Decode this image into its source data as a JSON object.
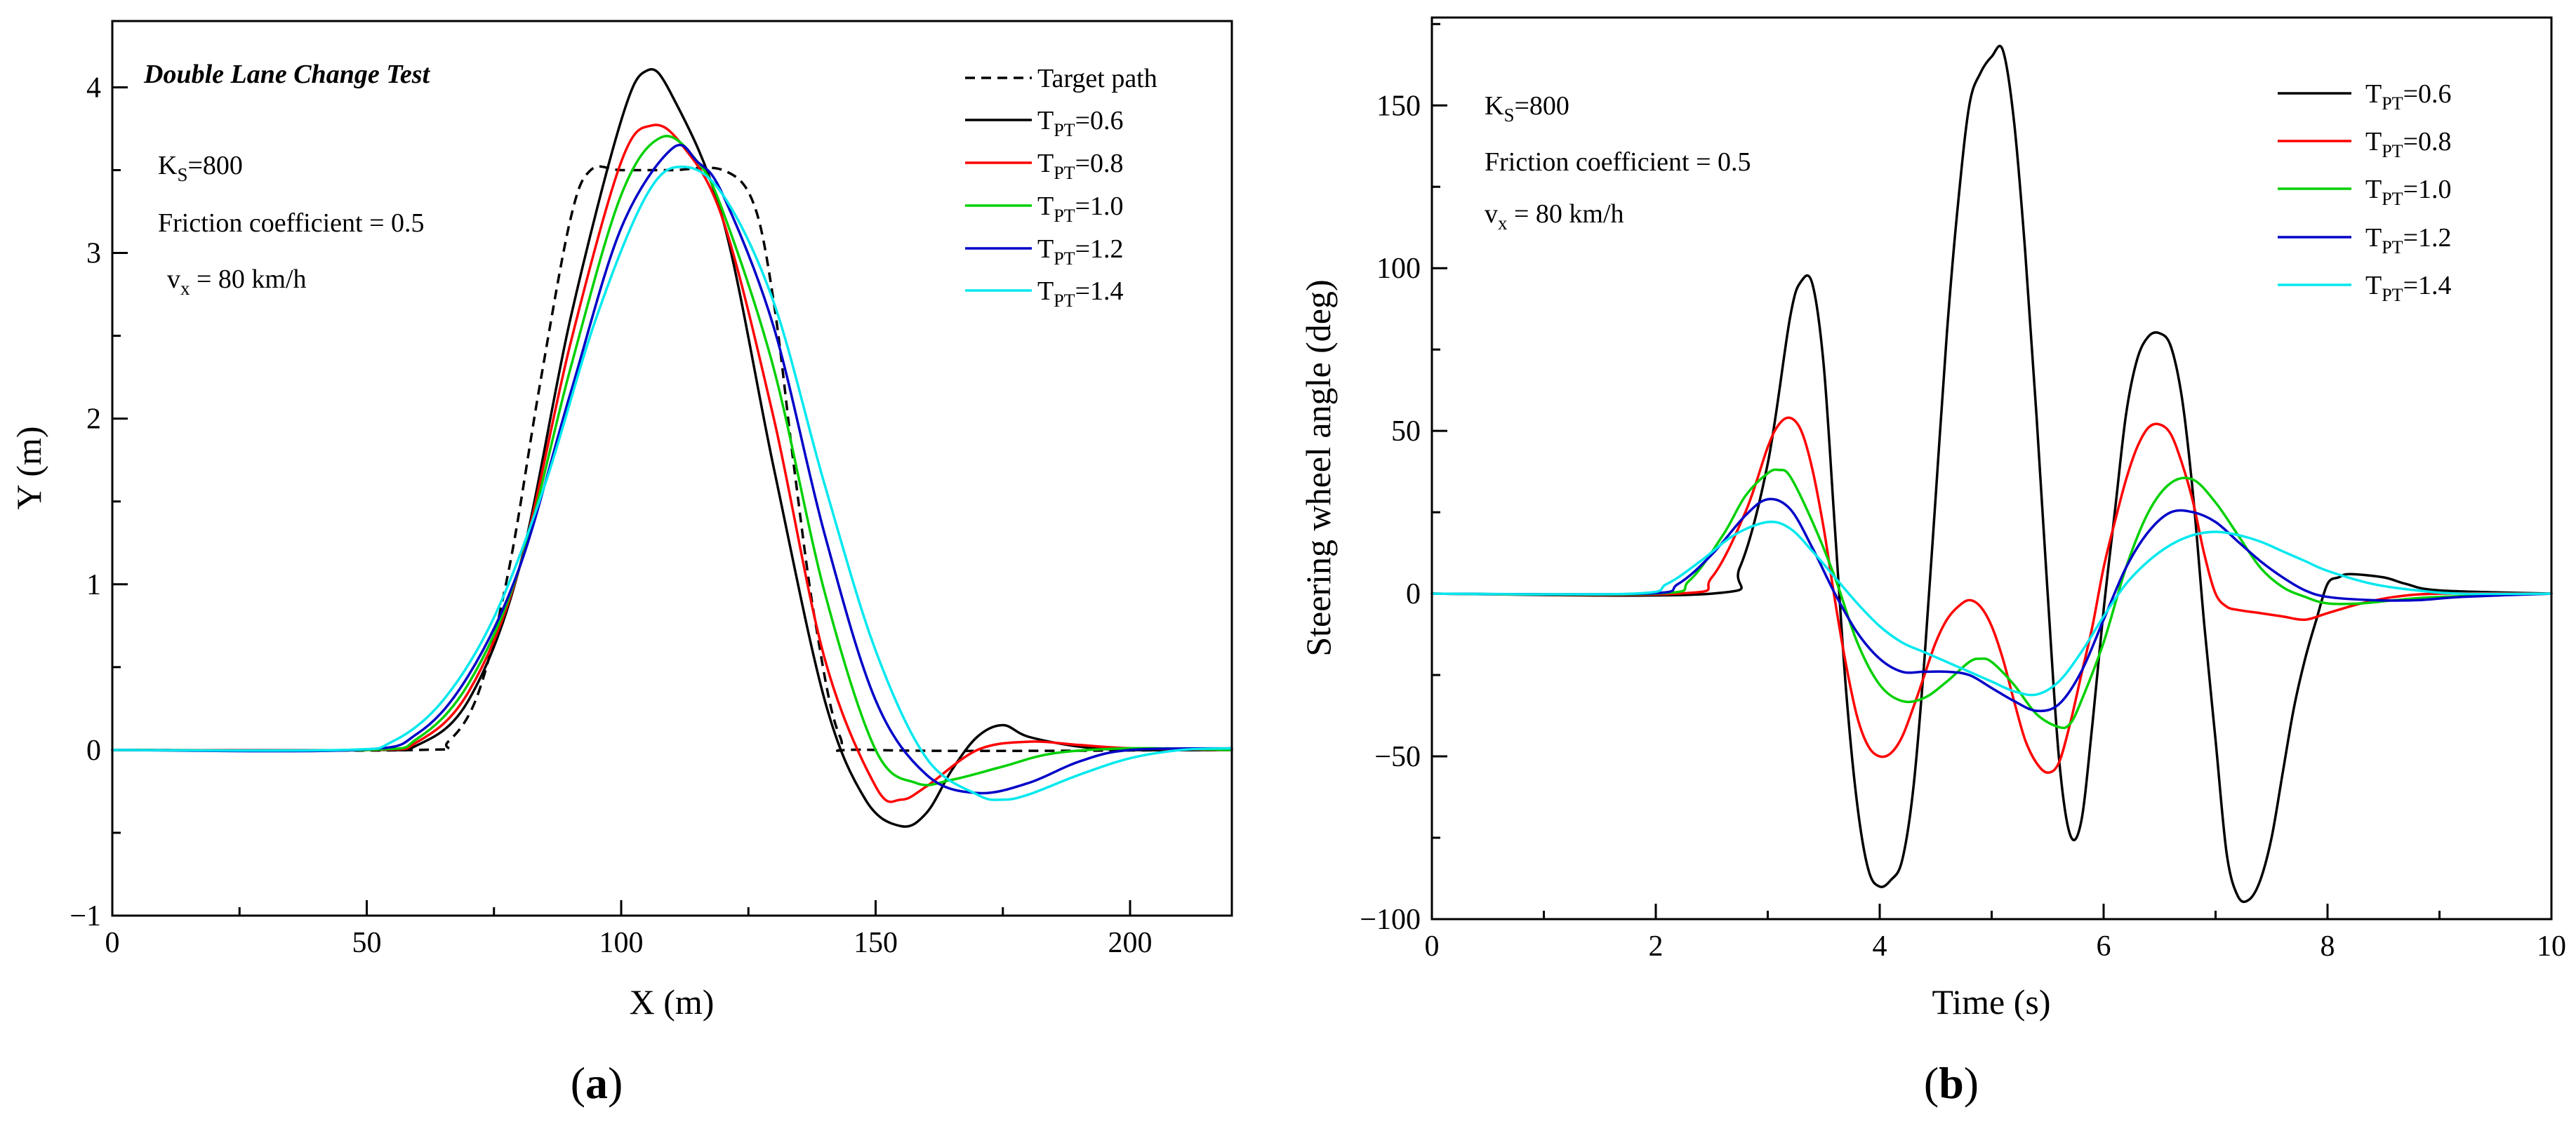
{
  "colors": {
    "target": "#000000",
    "t06": "#000000",
    "t08": "#ff0000",
    "t10": "#00d000",
    "t12": "#0000c8",
    "t14": "#00e8ee"
  },
  "panels": {
    "a": {
      "label_open": "(",
      "label_letter": "a",
      "label_close": ")"
    },
    "b": {
      "label_open": "(",
      "label_letter": "b",
      "label_close": ")"
    }
  },
  "chart_data": [
    {
      "type": "line",
      "title": "Double Lane Change Test",
      "xlabel": "X (m)",
      "ylabel": "Y (m)",
      "xlim": [
        0,
        220
      ],
      "ylim": [
        -1,
        4.4
      ],
      "xticks": [
        0,
        50,
        100,
        150,
        200
      ],
      "yticks": [
        -1,
        0,
        1,
        2,
        3,
        4
      ],
      "xtick_labels": [
        "0",
        "50",
        "100",
        "150",
        "200"
      ],
      "ytick_labels": [
        "−1",
        "0",
        "1",
        "2",
        "3",
        "4"
      ],
      "annotations": {
        "ks_main": "K",
        "ks_sub": "S",
        "ks_val": "=800",
        "friction": "Friction coefficient = 0.5",
        "vx_main": "v",
        "vx_sub": "x",
        "vx_val": " = 80 km/h"
      },
      "legend_position": "top-right",
      "series": [
        {
          "name": "Target path",
          "color_key": "target",
          "dashed": true,
          "x": [
            0,
            60,
            66,
            72,
            78,
            84,
            90,
            94,
            100,
            110,
            120,
            126,
            130,
            134,
            138,
            143,
            150,
            220
          ],
          "y": [
            0,
            0,
            0.05,
            0.35,
            1.1,
            2.2,
            3.2,
            3.5,
            3.5,
            3.5,
            3.5,
            3.3,
            2.7,
            1.7,
            0.8,
            0.08,
            0,
            0
          ]
        },
        {
          "name_main": "T",
          "name_sub": "PT",
          "name_val": "=0.6",
          "color_key": "t06",
          "dashed": false,
          "x": [
            0,
            50,
            60,
            70,
            80,
            90,
            100,
            105,
            110,
            120,
            130,
            140,
            148,
            155,
            160,
            165,
            170,
            175,
            180,
            190,
            200,
            220
          ],
          "y": [
            0,
            0,
            0.03,
            0.3,
            1.1,
            2.6,
            3.8,
            4.1,
            3.95,
            3.2,
            1.7,
            0.3,
            -0.3,
            -0.46,
            -0.38,
            -0.12,
            0.08,
            0.15,
            0.08,
            0.02,
            0,
            0
          ]
        },
        {
          "name_main": "T",
          "name_sub": "PT",
          "name_val": "=0.8",
          "color_key": "t08",
          "dashed": false,
          "x": [
            0,
            50,
            60,
            70,
            80,
            90,
            100,
            106,
            112,
            120,
            130,
            140,
            150,
            155,
            160,
            170,
            180,
            190,
            200,
            220
          ],
          "y": [
            0,
            0,
            0.05,
            0.35,
            1.1,
            2.45,
            3.55,
            3.77,
            3.65,
            3.2,
            2.0,
            0.55,
            -0.22,
            -0.3,
            -0.22,
            0.0,
            0.05,
            0.03,
            0.01,
            0
          ]
        },
        {
          "name_main": "T",
          "name_sub": "PT",
          "name_val": "=1.0",
          "color_key": "t10",
          "dashed": false,
          "x": [
            0,
            50,
            60,
            70,
            80,
            90,
            100,
            108,
            115,
            120,
            130,
            140,
            150,
            158,
            165,
            175,
            185,
            200,
            220
          ],
          "y": [
            0,
            0,
            0.07,
            0.4,
            1.1,
            2.3,
            3.35,
            3.7,
            3.55,
            3.25,
            2.3,
            0.95,
            0.0,
            -0.2,
            -0.18,
            -0.1,
            -0.02,
            0.01,
            0
          ]
        },
        {
          "name_main": "T",
          "name_sub": "PT",
          "name_val": "=1.2",
          "color_key": "t12",
          "dashed": false,
          "x": [
            0,
            48,
            60,
            70,
            80,
            90,
            100,
            110,
            115,
            120,
            130,
            140,
            150,
            160,
            170,
            180,
            190,
            200,
            220
          ],
          "y": [
            0,
            0,
            0.1,
            0.45,
            1.1,
            2.15,
            3.15,
            3.63,
            3.55,
            3.35,
            2.55,
            1.3,
            0.3,
            -0.15,
            -0.26,
            -0.2,
            -0.07,
            0.0,
            0.01
          ]
        },
        {
          "name_main": "T",
          "name_sub": "PT",
          "name_val": "=1.4",
          "color_key": "t14",
          "dashed": false,
          "x": [
            0,
            45,
            55,
            65,
            75,
            85,
            95,
            105,
            112,
            120,
            130,
            140,
            150,
            160,
            170,
            175,
            180,
            190,
            200,
            210,
            220
          ],
          "y": [
            0,
            0,
            0.05,
            0.3,
            0.8,
            1.6,
            2.6,
            3.35,
            3.52,
            3.35,
            2.7,
            1.6,
            0.6,
            -0.05,
            -0.27,
            -0.3,
            -0.27,
            -0.15,
            -0.05,
            0.0,
            0.01
          ]
        }
      ]
    },
    {
      "type": "line",
      "xlabel": "Time (s)",
      "ylabel": "Steering wheel angle (deg)",
      "xlim": [
        0,
        10
      ],
      "ylim": [
        -100,
        177
      ],
      "xticks": [
        0,
        2,
        4,
        6,
        8,
        10
      ],
      "yticks": [
        -100,
        -50,
        0,
        50,
        100,
        150
      ],
      "xtick_labels": [
        "0",
        "2",
        "4",
        "6",
        "8",
        "10"
      ],
      "ytick_labels": [
        "−100",
        "−50",
        "0",
        "50",
        "100",
        "150"
      ],
      "annotations": {
        "ks_main": "K",
        "ks_sub": "S",
        "ks_val": "=800",
        "friction": "Friction coefficient = 0.5",
        "vx_main": "v",
        "vx_sub": "x",
        "vx_val": " = 80 km/h"
      },
      "legend_position": "top-right",
      "series": [
        {
          "name_main": "T",
          "name_sub": "PT",
          "name_val": "=0.6",
          "color_key": "t06",
          "x": [
            0,
            2.5,
            2.75,
            3.0,
            3.2,
            3.3,
            3.4,
            3.5,
            3.6,
            3.7,
            3.8,
            3.9,
            4.0,
            4.1,
            4.2,
            4.3,
            4.4,
            4.5,
            4.6,
            4.7,
            4.8,
            4.9,
            5.0,
            5.1,
            5.2,
            5.3,
            5.4,
            5.5,
            5.6,
            5.7,
            5.8,
            5.9,
            6.0,
            6.1,
            6.2,
            6.3,
            6.4,
            6.5,
            6.6,
            6.7,
            6.8,
            6.9,
            7.0,
            7.1,
            7.2,
            7.3,
            7.4,
            7.5,
            7.6,
            7.7,
            7.8,
            7.9,
            8.0,
            8.1,
            8.2,
            8.5,
            8.7,
            9.0,
            10.0
          ],
          "y": [
            0,
            0,
            8,
            40,
            85,
            96,
            95,
            70,
            20,
            -30,
            -65,
            -85,
            -90,
            -88,
            -82,
            -60,
            -20,
            30,
            80,
            120,
            150,
            160,
            165,
            167,
            145,
            105,
            55,
            0,
            -50,
            -74,
            -70,
            -40,
            -5,
            25,
            55,
            72,
            79,
            80,
            76,
            60,
            30,
            -10,
            -45,
            -80,
            -93,
            -94,
            -88,
            -75,
            -55,
            -35,
            -20,
            -8,
            3,
            5,
            6,
            5,
            3,
            1,
            0
          ]
        },
        {
          "name_main": "T",
          "name_sub": "PT",
          "name_val": "=0.8",
          "color_key": "t08",
          "x": [
            0,
            2.2,
            2.5,
            2.8,
            3.0,
            3.1,
            3.2,
            3.3,
            3.4,
            3.5,
            3.6,
            3.7,
            3.8,
            3.9,
            4.0,
            4.1,
            4.2,
            4.3,
            4.4,
            4.5,
            4.6,
            4.7,
            4.8,
            4.9,
            5.0,
            5.1,
            5.2,
            5.3,
            5.4,
            5.5,
            5.6,
            5.7,
            5.8,
            5.9,
            6.0,
            6.1,
            6.2,
            6.3,
            6.4,
            6.5,
            6.6,
            6.7,
            6.8,
            6.9,
            7.0,
            7.1,
            7.2,
            7.4,
            7.6,
            7.8,
            8.0,
            8.3,
            8.6,
            9.0,
            10.0
          ],
          "y": [
            0,
            0,
            5,
            25,
            45,
            52,
            54,
            50,
            38,
            20,
            -2,
            -22,
            -38,
            -47,
            -50,
            -49,
            -44,
            -35,
            -25,
            -15,
            -8,
            -4,
            -2,
            -4,
            -10,
            -20,
            -33,
            -45,
            -52,
            -55,
            -52,
            -40,
            -25,
            -10,
            8,
            22,
            35,
            45,
            51,
            52,
            49,
            40,
            28,
            12,
            0,
            -4,
            -5,
            -6,
            -7,
            -8,
            -6,
            -3,
            -1,
            0,
            0
          ]
        },
        {
          "name_main": "T",
          "name_sub": "PT",
          "name_val": "=1.0",
          "color_key": "t10",
          "x": [
            0,
            2.0,
            2.3,
            2.6,
            2.8,
            3.0,
            3.1,
            3.2,
            3.4,
            3.6,
            3.8,
            4.0,
            4.2,
            4.4,
            4.6,
            4.8,
            4.9,
            5.0,
            5.2,
            5.4,
            5.6,
            5.7,
            5.8,
            6.0,
            6.2,
            6.4,
            6.6,
            6.8,
            7.0,
            7.2,
            7.4,
            7.6,
            7.8,
            8.0,
            8.3,
            8.6,
            9.0,
            10.0
          ],
          "y": [
            0,
            0,
            4,
            18,
            30,
            37,
            38,
            36,
            22,
            5,
            -15,
            -28,
            -33,
            -32,
            -27,
            -21,
            -20,
            -21,
            -28,
            -37,
            -41,
            -40,
            -33,
            -15,
            8,
            25,
            34,
            35,
            28,
            18,
            8,
            2,
            -1,
            -3,
            -3,
            -2,
            -1,
            0
          ]
        },
        {
          "name_main": "T",
          "name_sub": "PT",
          "name_val": "=1.2",
          "color_key": "t12",
          "x": [
            0,
            1.9,
            2.2,
            2.5,
            2.8,
            3.0,
            3.2,
            3.4,
            3.6,
            3.8,
            4.0,
            4.2,
            4.4,
            4.6,
            4.8,
            5.0,
            5.2,
            5.4,
            5.6,
            5.8,
            6.0,
            6.2,
            6.4,
            6.6,
            6.8,
            7.0,
            7.2,
            7.4,
            7.6,
            7.8,
            8.0,
            8.4,
            8.8,
            9.2,
            10.0
          ],
          "y": [
            0,
            0,
            3,
            12,
            24,
            29,
            26,
            14,
            0,
            -12,
            -20,
            -24,
            -24,
            -24,
            -25,
            -29,
            -33,
            -36,
            -34,
            -24,
            -8,
            8,
            19,
            25,
            25,
            22,
            16,
            10,
            5,
            1,
            -1,
            -2,
            -2,
            -1,
            0
          ]
        },
        {
          "name_main": "T",
          "name_sub": "PT",
          "name_val": "=1.4",
          "color_key": "t14",
          "x": [
            0,
            1.8,
            2.1,
            2.4,
            2.7,
            3.0,
            3.2,
            3.4,
            3.6,
            3.8,
            4.0,
            4.2,
            4.4,
            4.6,
            4.8,
            5.0,
            5.2,
            5.4,
            5.6,
            5.8,
            6.0,
            6.2,
            6.4,
            6.6,
            6.8,
            7.0,
            7.2,
            7.4,
            7.6,
            7.8,
            8.0,
            8.4,
            8.8,
            9.2,
            10.0
          ],
          "y": [
            0,
            0,
            3,
            10,
            18,
            22,
            20,
            13,
            5,
            -3,
            -10,
            -15,
            -18,
            -21,
            -24,
            -27,
            -30,
            -31,
            -27,
            -18,
            -7,
            3,
            10,
            15,
            18,
            19,
            18,
            16,
            13,
            10,
            7,
            3,
            1,
            0,
            0
          ]
        }
      ]
    }
  ]
}
